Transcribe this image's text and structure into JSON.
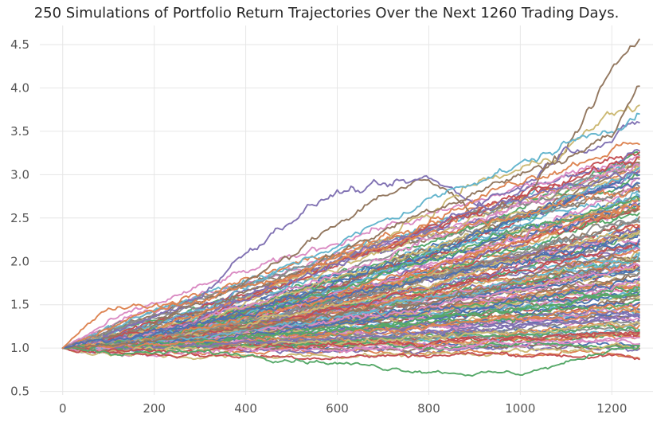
{
  "chart_data": {
    "type": "line",
    "title": "250 Simulations of Portfolio Return Trajectories Over the Next 1260 Trading Days.",
    "xlabel": "",
    "ylabel": "",
    "xlim": [
      -50,
      1290
    ],
    "ylim": [
      0.46,
      4.72
    ],
    "x_ticks": [
      0,
      200,
      400,
      600,
      800,
      1000,
      1200
    ],
    "y_ticks": [
      0.5,
      1.0,
      1.5,
      2.0,
      2.5,
      3.0,
      3.5,
      4.0,
      4.5
    ],
    "grid": true,
    "legend": "none",
    "num_simulations": 250,
    "trading_days": 1260,
    "start_value": 1.0,
    "end_value_range": [
      0.87,
      4.56
    ],
    "palette": [
      "#4c72b0",
      "#dd8452",
      "#55a868",
      "#c44e52",
      "#8172b3",
      "#937860",
      "#da8bc3",
      "#8c8c8c",
      "#ccb974",
      "#64b5cd"
    ],
    "series": [
      {
        "x": [
          0,
          100,
          200,
          300,
          400,
          500,
          600,
          700,
          800,
          900,
          1000,
          1100,
          1200,
          1260
        ],
        "values": [
          1.0,
          1.12,
          1.3,
          1.52,
          1.78,
          2.05,
          2.45,
          2.78,
          2.92,
          2.6,
          2.7,
          3.3,
          4.2,
          4.56
        ],
        "color": "#937860"
      },
      {
        "x": [
          0,
          100,
          200,
          300,
          400,
          500,
          600,
          700,
          800,
          900,
          1000,
          1100,
          1200,
          1260
        ],
        "values": [
          1.0,
          1.05,
          1.2,
          1.35,
          1.5,
          1.8,
          2.0,
          2.25,
          2.55,
          2.9,
          3.05,
          3.3,
          3.7,
          3.8
        ],
        "color": "#ccb974"
      },
      {
        "x": [
          0,
          100,
          200,
          300,
          400,
          500,
          600,
          700,
          800,
          900,
          1000,
          1100,
          1200,
          1260
        ],
        "values": [
          1.0,
          1.15,
          1.35,
          1.6,
          2.1,
          2.5,
          2.8,
          2.85,
          2.95,
          2.7,
          2.85,
          3.3,
          3.4,
          3.6
        ],
        "color": "#8172b3"
      },
      {
        "x": [
          0,
          100,
          200,
          300,
          400,
          500,
          600,
          700,
          800,
          900,
          1000,
          1100,
          1200,
          1260
        ],
        "values": [
          1.0,
          1.1,
          1.28,
          1.45,
          1.7,
          1.95,
          2.2,
          2.45,
          2.7,
          2.95,
          3.1,
          3.35,
          3.55,
          3.7
        ],
        "color": "#64b5cd"
      },
      {
        "x": [
          0,
          100,
          200,
          300,
          400,
          500,
          600,
          700,
          800,
          900,
          1000,
          1100,
          1200,
          1260
        ],
        "values": [
          1.0,
          1.1,
          1.25,
          1.45,
          1.65,
          1.85,
          2.1,
          2.35,
          2.6,
          2.8,
          3.0,
          3.2,
          3.45,
          4.02
        ],
        "color": "#937860"
      },
      {
        "x": [
          0,
          100,
          200,
          300,
          400,
          500,
          600,
          700,
          800,
          900,
          1000,
          1100,
          1200,
          1260
        ],
        "values": [
          1.0,
          1.08,
          1.2,
          1.38,
          1.6,
          1.8,
          2.05,
          2.25,
          2.5,
          2.7,
          2.95,
          3.1,
          3.3,
          3.35
        ],
        "color": "#dd8452"
      },
      {
        "x": [
          0,
          100,
          200,
          300,
          400,
          500,
          600,
          700,
          800,
          900,
          1000,
          1100,
          1200,
          1260
        ],
        "values": [
          1.0,
          1.1,
          1.22,
          1.35,
          1.55,
          1.75,
          1.95,
          2.15,
          2.35,
          2.55,
          2.75,
          2.95,
          3.1,
          3.2
        ],
        "color": "#c44e52"
      },
      {
        "x": [
          0,
          100,
          200,
          300,
          400,
          500,
          600,
          700,
          800,
          900,
          1000,
          1100,
          1200,
          1260
        ],
        "values": [
          1.0,
          1.07,
          1.18,
          1.32,
          1.5,
          1.68,
          1.88,
          2.05,
          2.25,
          2.45,
          2.65,
          2.85,
          3.0,
          3.1
        ],
        "color": "#da8bc3"
      },
      {
        "x": [
          0,
          100,
          200,
          300,
          400,
          500,
          600,
          700,
          800,
          900,
          1000,
          1100,
          1200,
          1260
        ],
        "values": [
          1.0,
          1.08,
          1.2,
          1.35,
          1.55,
          1.75,
          2.0,
          2.2,
          2.4,
          2.6,
          2.7,
          2.85,
          3.0,
          3.05
        ],
        "color": "#8172b3"
      },
      {
        "x": [
          0,
          100,
          200,
          300,
          400,
          500,
          600,
          700,
          800,
          900,
          1000,
          1100,
          1200,
          1260
        ],
        "values": [
          1.0,
          1.06,
          1.15,
          1.28,
          1.42,
          1.58,
          1.75,
          1.92,
          2.1,
          2.3,
          2.5,
          2.7,
          2.85,
          2.9
        ],
        "color": "#4c72b0"
      },
      {
        "x": [
          0,
          100,
          200,
          300,
          400,
          500,
          600,
          700,
          800,
          900,
          1000,
          1100,
          1200,
          1260
        ],
        "values": [
          1.0,
          1.05,
          1.12,
          1.25,
          1.38,
          1.52,
          1.68,
          1.85,
          2.0,
          2.2,
          2.35,
          2.5,
          2.65,
          2.7
        ],
        "color": "#55a868"
      },
      {
        "x": [
          0,
          100,
          200,
          300,
          400,
          500,
          600,
          700,
          800,
          900,
          1000,
          1100,
          1200,
          1260
        ],
        "values": [
          1.0,
          1.05,
          1.12,
          1.22,
          1.35,
          1.48,
          1.62,
          1.78,
          1.92,
          2.08,
          2.22,
          2.4,
          2.55,
          2.6
        ],
        "color": "#dd8452"
      },
      {
        "x": [
          0,
          100,
          200,
          300,
          400,
          500,
          600,
          700,
          800,
          900,
          1000,
          1100,
          1200,
          1260
        ],
        "values": [
          1.0,
          1.04,
          1.1,
          1.2,
          1.3,
          1.42,
          1.55,
          1.68,
          1.82,
          1.95,
          2.1,
          2.25,
          2.4,
          2.45
        ],
        "color": "#8c8c8c"
      },
      {
        "x": [
          0,
          100,
          200,
          300,
          400,
          500,
          600,
          700,
          800,
          900,
          1000,
          1100,
          1200,
          1260
        ],
        "values": [
          1.0,
          1.04,
          1.1,
          1.18,
          1.28,
          1.38,
          1.5,
          1.62,
          1.75,
          1.88,
          2.0,
          2.15,
          2.3,
          2.35
        ],
        "color": "#ccb974"
      },
      {
        "x": [
          0,
          100,
          200,
          300,
          400,
          500,
          600,
          700,
          800,
          900,
          1000,
          1100,
          1200,
          1260
        ],
        "values": [
          1.0,
          1.03,
          1.08,
          1.15,
          1.24,
          1.33,
          1.44,
          1.55,
          1.66,
          1.78,
          1.9,
          2.02,
          2.15,
          2.2
        ],
        "color": "#c44e52"
      },
      {
        "x": [
          0,
          100,
          200,
          300,
          400,
          500,
          600,
          700,
          800,
          900,
          1000,
          1100,
          1200,
          1260
        ],
        "values": [
          1.0,
          1.03,
          1.07,
          1.13,
          1.2,
          1.28,
          1.37,
          1.47,
          1.57,
          1.67,
          1.78,
          1.9,
          2.02,
          2.1
        ],
        "color": "#64b5cd"
      },
      {
        "x": [
          0,
          100,
          200,
          300,
          400,
          500,
          600,
          700,
          800,
          900,
          1000,
          1100,
          1200,
          1260
        ],
        "values": [
          1.0,
          1.02,
          1.06,
          1.11,
          1.17,
          1.24,
          1.32,
          1.4,
          1.48,
          1.57,
          1.67,
          1.77,
          1.88,
          1.95
        ],
        "color": "#da8bc3"
      },
      {
        "x": [
          0,
          100,
          200,
          300,
          400,
          500,
          600,
          700,
          800,
          900,
          1000,
          1100,
          1200,
          1260
        ],
        "values": [
          1.0,
          1.02,
          1.05,
          1.1,
          1.15,
          1.2,
          1.27,
          1.34,
          1.41,
          1.48,
          1.56,
          1.65,
          1.75,
          1.8
        ],
        "color": "#4c72b0"
      },
      {
        "x": [
          0,
          100,
          200,
          300,
          400,
          500,
          600,
          700,
          800,
          900,
          1000,
          1100,
          1200,
          1260
        ],
        "values": [
          1.0,
          1.02,
          1.04,
          1.08,
          1.12,
          1.17,
          1.22,
          1.28,
          1.33,
          1.39,
          1.45,
          1.52,
          1.6,
          1.65
        ],
        "color": "#55a868"
      },
      {
        "x": [
          0,
          100,
          200,
          300,
          400,
          500,
          600,
          700,
          800,
          900,
          1000,
          1100,
          1200,
          1260
        ],
        "values": [
          1.0,
          1.01,
          1.03,
          1.06,
          1.09,
          1.13,
          1.17,
          1.21,
          1.25,
          1.3,
          1.35,
          1.4,
          1.46,
          1.5
        ],
        "color": "#dd8452"
      },
      {
        "x": [
          0,
          100,
          200,
          300,
          400,
          500,
          600,
          700,
          800,
          900,
          1000,
          1100,
          1200,
          1260
        ],
        "values": [
          1.0,
          0.98,
          1.0,
          1.03,
          1.06,
          1.09,
          1.12,
          1.15,
          1.18,
          1.22,
          1.26,
          1.3,
          1.35,
          1.38
        ],
        "color": "#8172b3"
      },
      {
        "x": [
          0,
          100,
          200,
          300,
          400,
          500,
          600,
          700,
          800,
          900,
          1000,
          1100,
          1200,
          1260
        ],
        "values": [
          1.0,
          0.97,
          0.98,
          1.0,
          1.02,
          1.05,
          1.08,
          1.1,
          1.13,
          1.16,
          1.19,
          1.22,
          1.26,
          1.28
        ],
        "color": "#ccb974"
      },
      {
        "x": [
          0,
          100,
          200,
          300,
          400,
          500,
          600,
          700,
          800,
          900,
          1000,
          1100,
          1200,
          1260
        ],
        "values": [
          1.0,
          0.96,
          0.96,
          0.97,
          0.99,
          1.01,
          1.03,
          1.05,
          1.07,
          1.09,
          1.11,
          1.14,
          1.17,
          1.18
        ],
        "color": "#c44e52"
      },
      {
        "x": [
          0,
          100,
          200,
          300,
          400,
          500,
          600,
          700,
          800,
          900,
          1000,
          1100,
          1200,
          1260
        ],
        "values": [
          1.0,
          0.95,
          0.94,
          0.95,
          0.96,
          0.97,
          0.99,
          1.0,
          1.02,
          1.04,
          1.06,
          1.08,
          1.1,
          1.12
        ],
        "color": "#da8bc3"
      },
      {
        "x": [
          0,
          100,
          200,
          300,
          400,
          500,
          600,
          700,
          800,
          900,
          1000,
          1100,
          1200,
          1260
        ],
        "values": [
          1.0,
          0.93,
          0.91,
          0.9,
          0.9,
          0.91,
          0.92,
          0.92,
          0.93,
          0.95,
          0.96,
          0.97,
          1.0,
          1.02
        ],
        "color": "#ccb974"
      },
      {
        "x": [
          0,
          100,
          200,
          300,
          400,
          500,
          600,
          700,
          800,
          900,
          1000,
          1100,
          1200,
          1260
        ],
        "values": [
          1.0,
          0.95,
          0.93,
          0.92,
          0.91,
          0.9,
          0.9,
          0.91,
          0.92,
          0.93,
          0.93,
          0.92,
          0.9,
          0.87
        ],
        "color": "#c44e52"
      },
      {
        "x": [
          0,
          100,
          200,
          300,
          400,
          500,
          600,
          700,
          800,
          900,
          1000,
          1100,
          1200,
          1260
        ],
        "values": [
          1.0,
          0.96,
          0.94,
          0.95,
          0.93,
          0.88,
          0.83,
          0.78,
          0.74,
          0.71,
          0.71,
          0.82,
          1.0,
          1.03
        ],
        "color": "#55a868"
      },
      {
        "x": [
          0,
          100,
          200,
          300,
          400,
          500,
          600,
          700,
          800,
          900,
          1000,
          1100,
          1200,
          1260
        ],
        "values": [
          1.0,
          1.02,
          1.08,
          1.15,
          1.22,
          1.3,
          1.38,
          1.45,
          1.55,
          1.65,
          1.78,
          1.95,
          2.05,
          2.0
        ],
        "color": "#937860"
      },
      {
        "x": [
          0,
          100,
          200,
          300,
          400,
          500,
          600,
          700,
          800,
          900,
          1000,
          1100,
          1200,
          1260
        ],
        "values": [
          1.0,
          1.1,
          1.2,
          1.3,
          1.4,
          1.5,
          1.6,
          1.7,
          1.8,
          1.9,
          2.0,
          2.1,
          2.2,
          2.25
        ],
        "color": "#4c72b0"
      },
      {
        "x": [
          0,
          100,
          200,
          300,
          400,
          500,
          600,
          700,
          800,
          900,
          1000,
          1100,
          1200,
          1260
        ],
        "values": [
          1.0,
          1.45,
          1.48,
          1.55,
          1.7,
          1.85,
          2.0,
          2.15,
          2.3,
          2.45,
          2.55,
          2.7,
          2.8,
          2.85
        ],
        "color": "#dd8452"
      }
    ]
  }
}
